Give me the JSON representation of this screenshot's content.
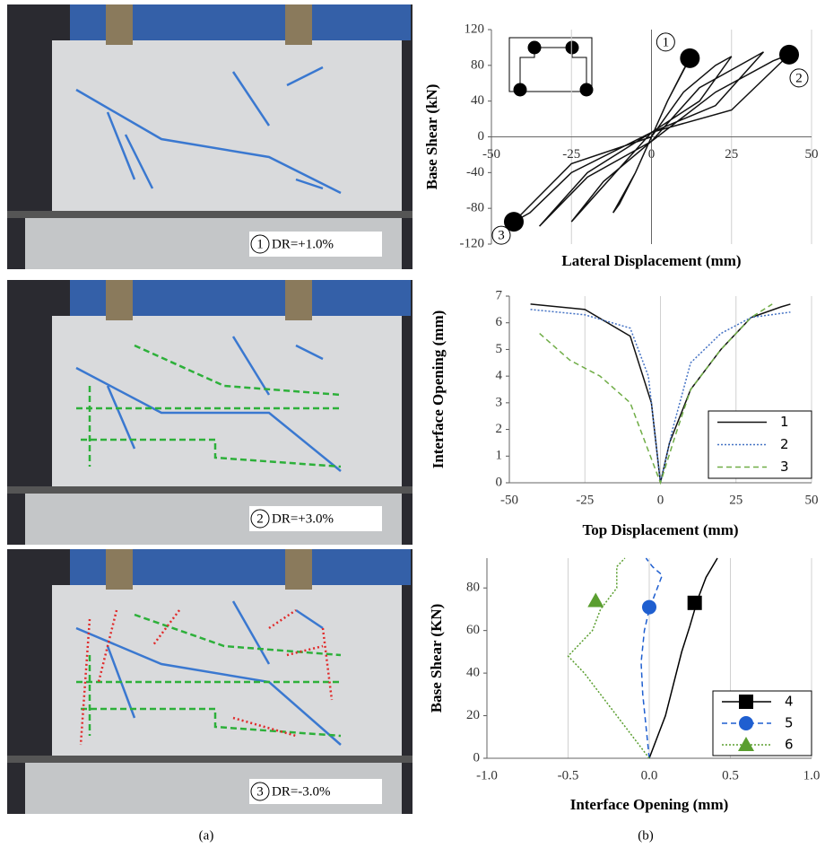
{
  "figure": {
    "photos": [
      {
        "number": "1",
        "label": "DR=+1.0%"
      },
      {
        "number": "2",
        "label": "DR=+3.0%"
      },
      {
        "number": "3",
        "label": "DR=-3.0%"
      }
    ],
    "captions": [
      "(a)",
      "(b)"
    ]
  },
  "chart_data": [
    {
      "type": "line",
      "x_label": "Lateral Displacement (mm)",
      "y_label": "Base Shear (kN)",
      "xlim": [
        -50,
        50
      ],
      "xticks": [
        -50,
        -25,
        0,
        25,
        50
      ],
      "ylim": [
        -120,
        120
      ],
      "yticks": [
        -120,
        -80,
        -40,
        0,
        40,
        80,
        120
      ],
      "grid": true,
      "axes_at_zero": true,
      "series": [
        {
          "color": "#111111",
          "dash": "solid",
          "x": [
            0,
            5,
            10,
            12,
            5,
            0,
            -5,
            -10,
            -12,
            -5,
            0,
            10,
            20,
            25,
            15,
            0,
            -10,
            -20,
            -25,
            -15,
            0,
            15,
            30,
            35,
            20,
            0,
            -20,
            -30,
            -35,
            -20,
            0,
            20,
            38,
            43,
            25,
            0,
            -25,
            -38,
            -43,
            -25,
            0
          ],
          "values": [
            0,
            40,
            75,
            88,
            40,
            0,
            -40,
            -75,
            -85,
            -40,
            0,
            50,
            80,
            90,
            40,
            5,
            -35,
            -75,
            -95,
            -50,
            -5,
            55,
            85,
            95,
            35,
            5,
            -40,
            -80,
            -100,
            -45,
            -5,
            50,
            85,
            92,
            30,
            5,
            -40,
            -85,
            -95,
            -30,
            0
          ]
        }
      ],
      "markers": [
        {
          "label": "1",
          "x": 12,
          "y": 88
        },
        {
          "label": "2",
          "x": 43,
          "y": 92
        },
        {
          "label": "3",
          "x": -43,
          "y": -95
        }
      ]
    },
    {
      "type": "line",
      "x_label": "Top Displacement (mm)",
      "y_label": "Interface Opening (mm)",
      "xlim": [
        -50,
        50
      ],
      "xticks": [
        -50,
        -25,
        0,
        25,
        50
      ],
      "ylim": [
        0,
        7
      ],
      "yticks": [
        0,
        1,
        2,
        3,
        4,
        5,
        6,
        7
      ],
      "grid": true,
      "legend": "lower-right",
      "series": [
        {
          "name": "1",
          "color": "#111111",
          "dash": "solid",
          "x": [
            -43,
            -25,
            -10,
            -3,
            0,
            3,
            10,
            20,
            30,
            40,
            43
          ],
          "values": [
            6.7,
            6.5,
            5.5,
            3,
            0,
            1.5,
            3.5,
            5,
            6.2,
            6.6,
            6.7
          ]
        },
        {
          "name": "2",
          "color": "#4472c4",
          "dash": "dotted",
          "x": [
            -43,
            -25,
            -10,
            -4,
            0,
            4,
            10,
            20,
            30,
            43
          ],
          "values": [
            6.5,
            6.3,
            5.8,
            4,
            0,
            2,
            4.5,
            5.6,
            6.2,
            6.4
          ]
        },
        {
          "name": "3",
          "color": "#70ad47",
          "dash": "dashed",
          "x": [
            -40,
            -30,
            -20,
            -10,
            -5,
            0,
            5,
            10,
            20,
            30,
            37
          ],
          "values": [
            5.6,
            4.6,
            4,
            3,
            1.5,
            0,
            1.8,
            3.5,
            5,
            6.2,
            6.7
          ]
        }
      ]
    },
    {
      "type": "line",
      "x_label": "Interface Opening (mm)",
      "y_label": "Base Shear (KN)",
      "xlim": [
        -1,
        1
      ],
      "xticks": [
        {
          "value": -1,
          "label": "-1.0"
        },
        {
          "value": -0.5,
          "label": "-0.5"
        },
        {
          "value": 0,
          "label": "0.0"
        },
        {
          "value": 0.5,
          "label": "0.5"
        },
        {
          "value": 1,
          "label": "1.0"
        }
      ],
      "ylim": [
        0,
        94
      ],
      "yticks": [
        0,
        20,
        40,
        60,
        80
      ],
      "grid": true,
      "legend": "lower-right",
      "series": [
        {
          "name": "4",
          "color": "#000000",
          "dash": "solid",
          "marker": "square",
          "x": [
            0,
            0.05,
            0.1,
            0.15,
            0.2,
            0.25,
            0.3,
            0.35,
            0.42
          ],
          "values": [
            0,
            10,
            20,
            35,
            50,
            62,
            75,
            85,
            94
          ],
          "marker_point": {
            "x": 0.28,
            "y": 73
          }
        },
        {
          "name": "5",
          "color": "#1f5fd0",
          "dash": "dashed",
          "marker": "circle",
          "x": [
            0,
            -0.02,
            -0.04,
            -0.05,
            -0.03,
            0,
            0.04,
            0.08,
            0.02,
            -0.02
          ],
          "values": [
            0,
            15,
            30,
            45,
            60,
            70,
            78,
            86,
            90,
            94
          ],
          "marker_point": {
            "x": 0,
            "y": 71
          }
        },
        {
          "name": "6",
          "color": "#5a9e2f",
          "dash": "dotted",
          "marker": "triangle",
          "x": [
            0,
            -0.1,
            -0.25,
            -0.4,
            -0.5,
            -0.35,
            -0.3,
            -0.2,
            -0.2,
            -0.15
          ],
          "values": [
            0,
            10,
            25,
            40,
            48,
            60,
            70,
            80,
            90,
            94
          ],
          "marker_point": {
            "x": -0.33,
            "y": 74
          }
        }
      ]
    }
  ]
}
